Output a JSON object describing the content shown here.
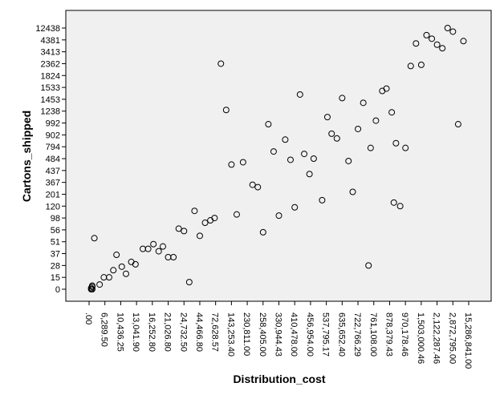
{
  "chart_data": {
    "type": "scatter",
    "xlabel": "Distribution_cost",
    "ylabel": "Cartons_shipped",
    "x_axis_kind": "categorical",
    "y_axis_kind": "categorical",
    "x_ticks": [
      ".00",
      "6,289.50",
      "10,436.25",
      "13,041.90",
      "16,252.80",
      "21,026.80",
      "24,732.50",
      "44,466.80",
      "72,628.57",
      "143,253.40",
      "230,811.00",
      "258,405.00",
      "330,944.43",
      "410,478.00",
      "456,954.00",
      "537,795.17",
      "635,652.40",
      "722,766.29",
      "761,108.00",
      "878,379.43",
      "970,178.46",
      "1,503,000.46",
      "2,122,287.46",
      "2,872,795.00",
      "15,286,841.00"
    ],
    "y_ticks": [
      "0",
      "15",
      "28",
      "37",
      "51",
      "56",
      "98",
      "120",
      "201",
      "367",
      "437",
      "484",
      "794",
      "902",
      "992",
      "1238",
      "1453",
      "1533",
      "1824",
      "2362",
      "3413",
      "4381",
      "12438"
    ],
    "grid": false,
    "legend": "none",
    "colors": {
      "plot_background": "#f0f0f0",
      "frame": "#000000",
      "marker_stroke": "#000000"
    },
    "points": [
      {
        "x": 0.3,
        "y": 0.3
      },
      {
        "x": 0.3,
        "y": 0.2
      },
      {
        "x": 0.2,
        "y": 0.1
      },
      {
        "x": 0.3,
        "y": 0.0
      },
      {
        "x": 0.2,
        "y": 0.0
      },
      {
        "x": 0.5,
        "y": 4.3
      },
      {
        "x": 1.0,
        "y": 0.4
      },
      {
        "x": 1.4,
        "y": 1.0
      },
      {
        "x": 1.9,
        "y": 1.0
      },
      {
        "x": 2.3,
        "y": 1.6
      },
      {
        "x": 2.6,
        "y": 2.9
      },
      {
        "x": 3.1,
        "y": 1.9
      },
      {
        "x": 3.5,
        "y": 1.3
      },
      {
        "x": 4.0,
        "y": 2.3
      },
      {
        "x": 4.4,
        "y": 2.1
      },
      {
        "x": 5.1,
        "y": 3.4
      },
      {
        "x": 5.6,
        "y": 3.4
      },
      {
        "x": 6.1,
        "y": 3.8
      },
      {
        "x": 6.6,
        "y": 3.2
      },
      {
        "x": 7.0,
        "y": 3.6
      },
      {
        "x": 7.5,
        "y": 2.7
      },
      {
        "x": 8.0,
        "y": 2.7
      },
      {
        "x": 8.5,
        "y": 5.1
      },
      {
        "x": 9.0,
        "y": 4.9
      },
      {
        "x": 9.5,
        "y": 0.6
      },
      {
        "x": 10.0,
        "y": 6.6
      },
      {
        "x": 10.5,
        "y": 4.5
      },
      {
        "x": 11.0,
        "y": 5.6
      },
      {
        "x": 11.5,
        "y": 5.8
      },
      {
        "x": 11.9,
        "y": 6.0
      },
      {
        "x": 12.5,
        "y": 19.0
      },
      {
        "x": 13.0,
        "y": 15.1
      },
      {
        "x": 13.5,
        "y": 10.5
      },
      {
        "x": 14.0,
        "y": 6.3
      },
      {
        "x": 14.6,
        "y": 10.7
      },
      {
        "x": 15.5,
        "y": 8.8
      },
      {
        "x": 16.0,
        "y": 8.6
      },
      {
        "x": 16.5,
        "y": 4.8
      },
      {
        "x": 17.0,
        "y": 13.9
      },
      {
        "x": 17.5,
        "y": 11.6
      },
      {
        "x": 18.0,
        "y": 6.2
      },
      {
        "x": 18.6,
        "y": 12.6
      },
      {
        "x": 19.1,
        "y": 10.9
      },
      {
        "x": 19.5,
        "y": 6.9
      },
      {
        "x": 20.0,
        "y": 16.4
      },
      {
        "x": 20.4,
        "y": 11.4
      },
      {
        "x": 20.9,
        "y": 9.7
      },
      {
        "x": 21.3,
        "y": 11.0
      },
      {
        "x": 22.1,
        "y": 7.5
      },
      {
        "x": 22.6,
        "y": 14.5
      },
      {
        "x": 23.0,
        "y": 13.1
      },
      {
        "x": 23.5,
        "y": 12.7
      },
      {
        "x": 24.0,
        "y": 16.1
      },
      {
        "x": 24.6,
        "y": 10.8
      },
      {
        "x": 25.0,
        "y": 8.2
      },
      {
        "x": 25.5,
        "y": 13.5
      },
      {
        "x": 26.0,
        "y": 15.7
      },
      {
        "x": 26.5,
        "y": 2.0
      },
      {
        "x": 26.7,
        "y": 11.9
      },
      {
        "x": 27.2,
        "y": 14.2
      },
      {
        "x": 27.8,
        "y": 16.7
      },
      {
        "x": 28.2,
        "y": 16.9
      },
      {
        "x": 28.7,
        "y": 14.9
      },
      {
        "x": 28.9,
        "y": 7.3
      },
      {
        "x": 29.1,
        "y": 12.3
      },
      {
        "x": 29.5,
        "y": 7.0
      },
      {
        "x": 30.0,
        "y": 11.9
      },
      {
        "x": 30.5,
        "y": 18.8
      },
      {
        "x": 31.0,
        "y": 20.7
      },
      {
        "x": 31.5,
        "y": 18.9
      },
      {
        "x": 32.0,
        "y": 21.4
      },
      {
        "x": 32.5,
        "y": 21.1
      },
      {
        "x": 33.0,
        "y": 20.6
      },
      {
        "x": 33.5,
        "y": 20.3
      },
      {
        "x": 34.0,
        "y": 22.0
      },
      {
        "x": 34.5,
        "y": 21.7
      },
      {
        "x": 35.0,
        "y": 13.9
      },
      {
        "x": 35.5,
        "y": 20.9
      }
    ]
  }
}
